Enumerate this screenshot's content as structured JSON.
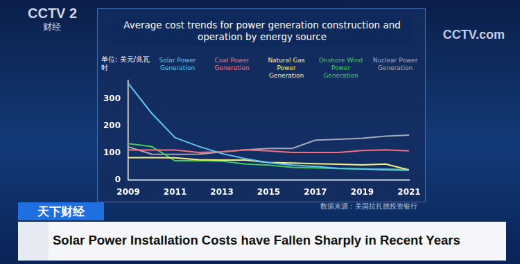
{
  "chart_data": {
    "type": "line",
    "title": "Average cost trends for power generation construction and operation by energy source",
    "y_label": "单位: 美元/兆瓦时",
    "x": [
      2009,
      2010,
      2011,
      2012,
      2013,
      2014,
      2015,
      2016,
      2017,
      2018,
      2019,
      2020,
      2021
    ],
    "series": [
      {
        "name": "Solar Power Generation",
        "color": "#5cc6f0",
        "values": [
          359,
          248,
          157,
          125,
          98,
          79,
          64,
          55,
          50,
          43,
          40,
          37,
          36
        ]
      },
      {
        "name": "Coal Power Generation",
        "color": "#f0707c",
        "values": [
          111,
          111,
          111,
          102,
          105,
          112,
          108,
          102,
          102,
          102,
          109,
          112,
          108
        ]
      },
      {
        "name": "Natural Gas Power Generation",
        "color": "#fff27a",
        "values": [
          83,
          83,
          82,
          75,
          74,
          74,
          65,
          63,
          60,
          58,
          56,
          59,
          37
        ]
      },
      {
        "name": "Onshore Wind Power Generation",
        "color": "#3fcc5c",
        "values": [
          135,
          124,
          71,
          72,
          70,
          59,
          55,
          47,
          45,
          42,
          41,
          40,
          38
        ]
      },
      {
        "name": "Nuclear Power Generation",
        "color": "#a8a9ba",
        "values": [
          123,
          96,
          95,
          96,
          104,
          112,
          117,
          117,
          148,
          151,
          155,
          163,
          167
        ]
      }
    ],
    "xlim": [
      2009,
      2021
    ],
    "xticks": [
      2009,
      2011,
      2013,
      2015,
      2017,
      2019,
      2021
    ],
    "ylim": [
      0,
      370
    ],
    "yticks": [
      0,
      100,
      200,
      300
    ],
    "grid": false,
    "legend": "top",
    "source": "数据来源：美国拉扎德投资银行"
  },
  "page": {
    "logo": "CCTV 2",
    "logo_sub": "财经",
    "watermark": "CCTV.com",
    "program": "天下财经",
    "caption": "Solar Power Installation Costs have Fallen Sharply in Recent Years"
  }
}
